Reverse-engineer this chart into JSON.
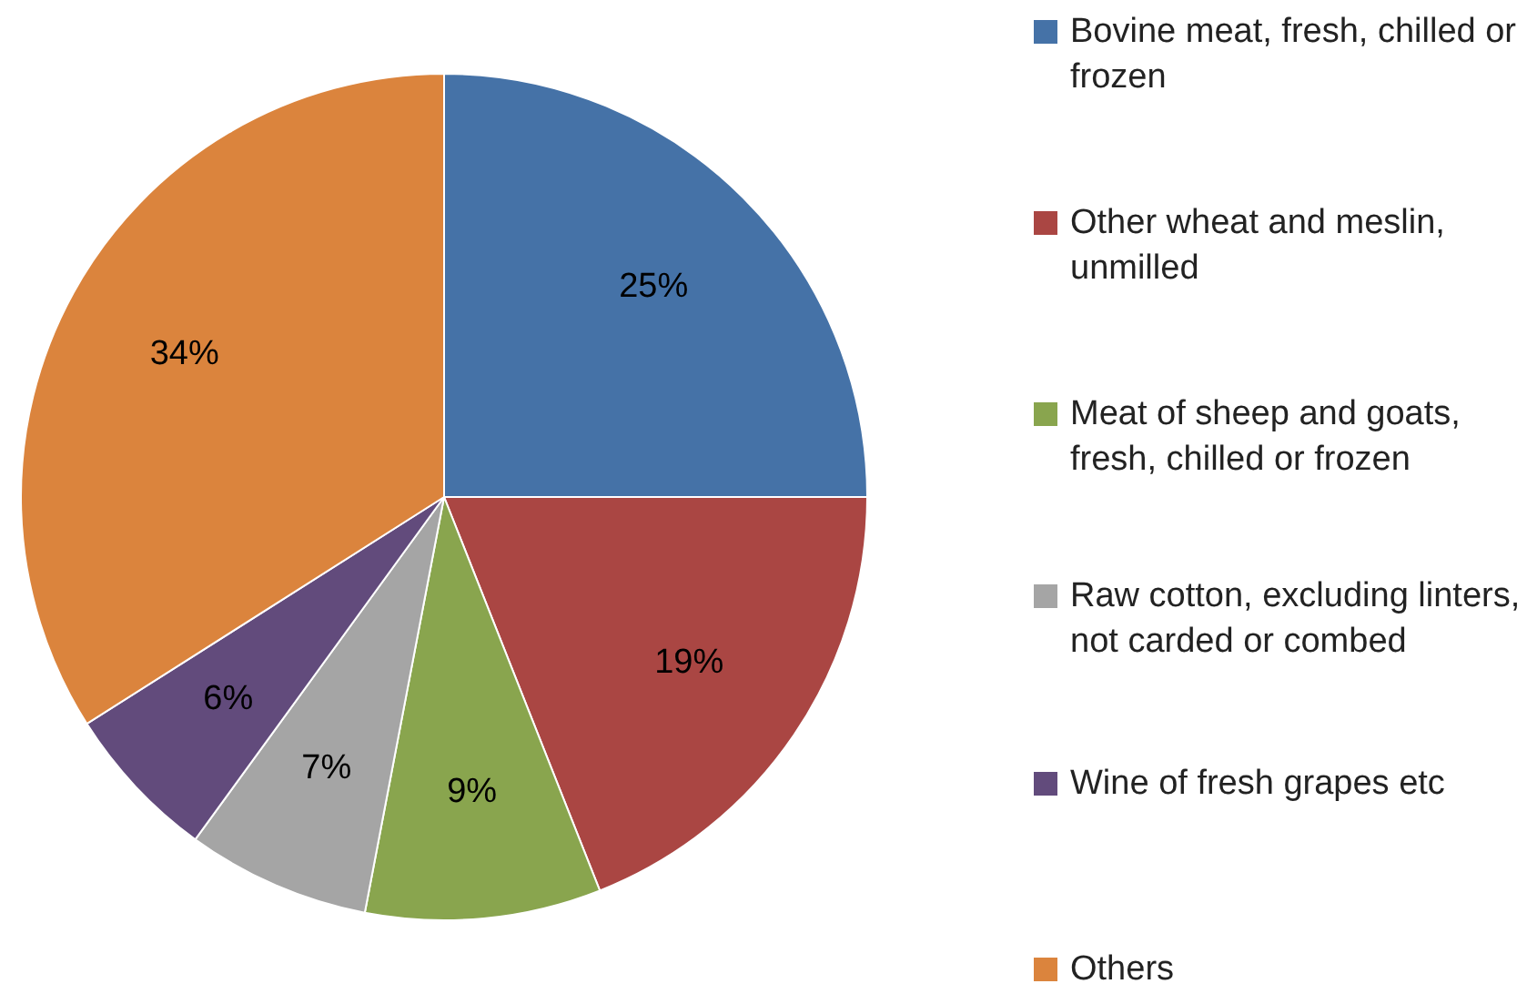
{
  "chart_data": {
    "type": "pie",
    "categories": [
      "Bovine meat, fresh, chilled or frozen",
      "Other wheat and meslin, unmilled",
      "Meat of sheep and goats, fresh, chilled or frozen",
      "Raw cotton, excluding linters, not carded or combed",
      "Wine of fresh grapes etc",
      "Others"
    ],
    "values": [
      25,
      19,
      9,
      7,
      6,
      34
    ],
    "value_labels": [
      "25%",
      "19%",
      "9%",
      "7%",
      "6%",
      "34%"
    ],
    "colors": [
      "#4572a7",
      "#aa4643",
      "#89a54e",
      "#a5a5a5",
      "#624b7c",
      "#db843d"
    ],
    "legend": "right"
  }
}
